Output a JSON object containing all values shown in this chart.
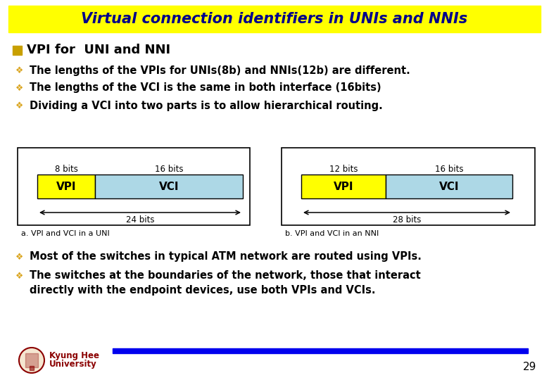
{
  "title": "Virtual connection identifiers in UNIs and NNIs",
  "title_bg": "#FFFF00",
  "title_color": "#00008B",
  "bg_color": "#FFFFFF",
  "bullet_color": "#DAA520",
  "text_color": "#000000",
  "heading": "VPI for  UNI and NNI",
  "heading_sq_color": "#C8A000",
  "bullets": [
    "The lengths of the VPIs for UNIs(8b) and NNIs(12b) are different.",
    "The lengths of the VCI is the same in both interface (16bits)",
    "Dividing a VCI into two parts is to allow hierarchical routing."
  ],
  "diagram_a_label": "a. VPI and VCI in a UNI",
  "diagram_b_label": "b. VPI and VCI in an NNI",
  "uni_vpi_bits": "8 bits",
  "uni_vci_bits": "16 bits",
  "uni_total_bits": "24 bits",
  "nni_vpi_bits": "12 bits",
  "nni_vci_bits": "16 bits",
  "nni_total_bits": "28 bits",
  "vpi_color": "#FFFF00",
  "vci_color": "#ADD8E6",
  "footer_text1": "Most of the switches in typical ATM network are routed using VPIs.",
  "footer_text2_line1": "The switches at the boundaries of the network, those that interact",
  "footer_text2_line2": "directly with the endpoint devices, use both VPIs and VCIs.",
  "footer_bar_color": "#0000EE",
  "page_num": "29",
  "university_name1": "Kyung Hee",
  "university_name2": "University",
  "univ_color": "#8B0000"
}
